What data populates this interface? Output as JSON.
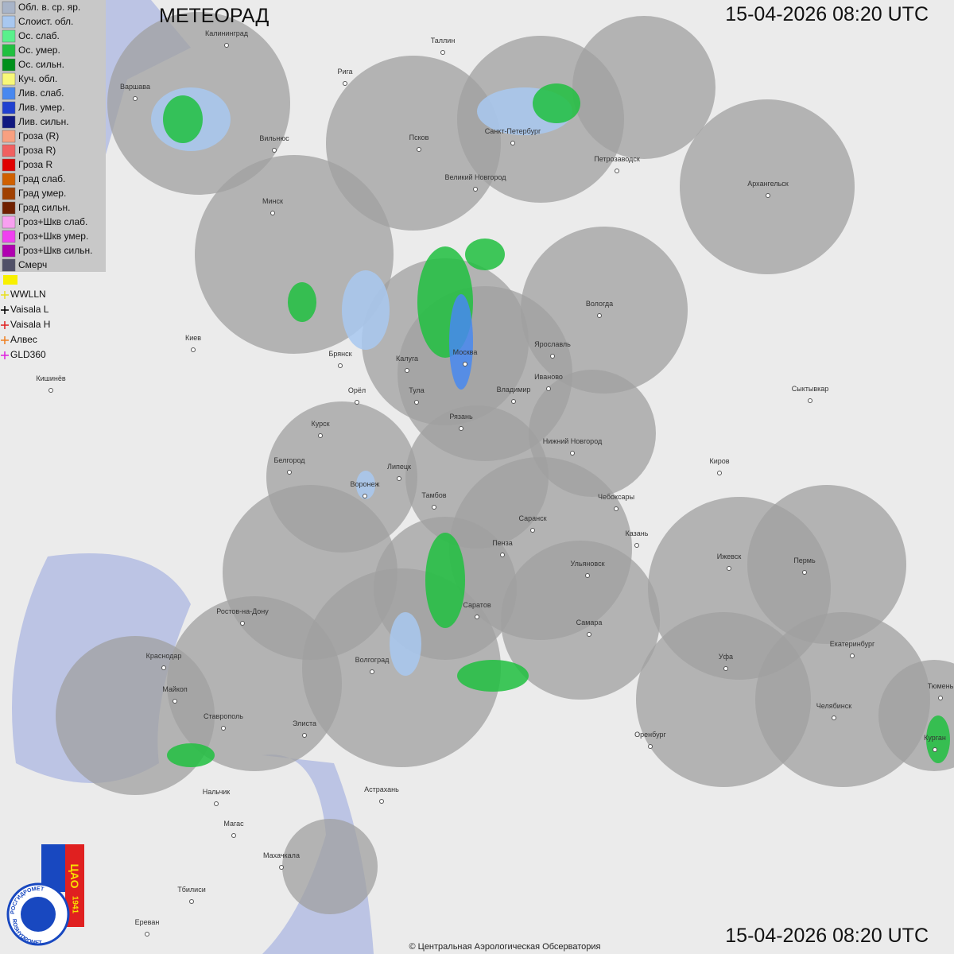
{
  "header": {
    "title": "МЕТЕОРАД",
    "timestamp": "15-04-2026  08:20 UTC"
  },
  "legend": [
    {
      "label": "Обл. в. ср. яр.",
      "color": "#a8b4c8"
    },
    {
      "label": "Слоист. обл.",
      "color": "#a8c8f0"
    },
    {
      "label": "Ос. слаб.",
      "color": "#5af08c"
    },
    {
      "label": "Ос. умер.",
      "color": "#20c040"
    },
    {
      "label": "Ос. сильн.",
      "color": "#00901c"
    },
    {
      "label": "Куч. обл.",
      "color": "#f8f878"
    },
    {
      "label": "Лив. слаб.",
      "color": "#4888f0"
    },
    {
      "label": "Лив. умер.",
      "color": "#2040d0"
    },
    {
      "label": "Лив. сильн.",
      "color": "#101880"
    },
    {
      "label": "Гроза (R)",
      "color": "#f8a080"
    },
    {
      "label": "Гроза R)",
      "color": "#f06060"
    },
    {
      "label": "Гроза R",
      "color": "#e00000"
    },
    {
      "label": "Град слаб.",
      "color": "#d06000"
    },
    {
      "label": "Град умер.",
      "color": "#a04000"
    },
    {
      "label": "Град сильн.",
      "color": "#702000"
    },
    {
      "label": "Гроз+Шкв слаб.",
      "color": "#f8a0f0"
    },
    {
      "label": "Гроз+Шкв умер.",
      "color": "#f040f0"
    },
    {
      "label": "Гроз+Шкв сильн.",
      "color": "#b000b0"
    },
    {
      "label": "Смерч",
      "color": "#505068"
    }
  ],
  "lightning": [
    {
      "label": "WWLLN",
      "color": "#e8e020"
    },
    {
      "label": "Vaisala L",
      "color": "#000000"
    },
    {
      "label": "Vaisala H",
      "color": "#e02020"
    },
    {
      "label": "Алвес",
      "color": "#f08020"
    },
    {
      "label": "GLD360",
      "color": "#e020e0"
    }
  ],
  "cities": [
    "Калининград",
    "Таллин",
    "Рига",
    "Варшава",
    "Вильнюс",
    "Псков",
    "Санкт-Петербург",
    "Петрозаводск",
    "Архангельск",
    "Великий Новгород",
    "Минск",
    "Вологда",
    "Киев",
    "Брянск",
    "Калуга",
    "Москва",
    "Ярославль",
    "Иваново",
    "Кишинёв",
    "Орёл",
    "Тула",
    "Владимир",
    "Сыктывкар",
    "Рязань",
    "Курск",
    "Нижний Новгород",
    "Белгород",
    "Липецк",
    "Киров",
    "Воронеж",
    "Тамбов",
    "Чебоксары",
    "Саранск",
    "Казань",
    "Пенза",
    "Ижевск",
    "Пермь",
    "Ульяновск",
    "Ростов-на-Дону",
    "Саратов",
    "Самара",
    "Екатеринбург",
    "Краснодар",
    "Волгоград",
    "Уфа",
    "Майкоп",
    "Тюмень",
    "Челябинск",
    "Ставрополь",
    "Элиста",
    "Оренбург",
    "Курган",
    "Астрахань",
    "Нальчик",
    "Магас",
    "Махачкала",
    "Тбилиси",
    "Ереван"
  ],
  "logo": {
    "org": "ЦАО",
    "year": "1941",
    "ru": "РОСГИДРОМЕТ",
    "en": "ROSHYDROMET"
  },
  "footer": {
    "copyright": "© Центральная Аэрологическая Обсерватория"
  }
}
